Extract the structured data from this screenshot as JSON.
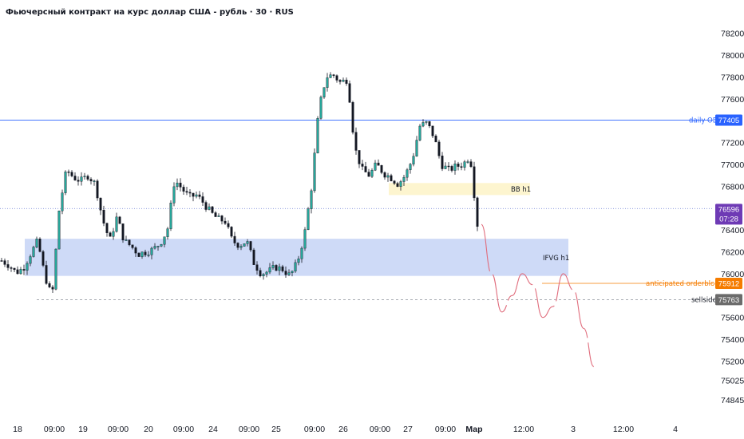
{
  "header": {
    "title": "Фьючерсный контракт на курс доллар США - рубль · 30 · RUS"
  },
  "colors": {
    "bull": "#26a69a",
    "bear": "#131722",
    "blue_line": "#2962ff",
    "orange": "#f57c00",
    "current_badge": "#6e3ab5",
    "sellside_badge": "#6b6b6b",
    "ifvg_zone": "#c5d3f6",
    "bb_zone": "#fdf3c7",
    "projection": "#e06c7c"
  },
  "chart_data": {
    "type": "candlestick",
    "title": "Фьючерсный контракт на курс доллар США - рубль · 30 · RUS",
    "ylim": [
      74780,
      78300
    ],
    "y_ticks": [
      78200,
      78000,
      77800,
      77600,
      77200,
      77000,
      76800,
      76400,
      76200,
      76000,
      75600,
      75400,
      75200,
      75025,
      74845
    ],
    "x_ticks": [
      {
        "label": "18",
        "bold": false
      },
      {
        "label": "09:00",
        "bold": false
      },
      {
        "label": "19",
        "bold": false
      },
      {
        "label": "09:00",
        "bold": false
      },
      {
        "label": "20",
        "bold": false
      },
      {
        "label": "09:00",
        "bold": false
      },
      {
        "label": "24",
        "bold": false
      },
      {
        "label": "09:00",
        "bold": false
      },
      {
        "label": "25",
        "bold": false
      },
      {
        "label": "09:00",
        "bold": false
      },
      {
        "label": "26",
        "bold": false
      },
      {
        "label": "09:00",
        "bold": false
      },
      {
        "label": "27",
        "bold": false
      },
      {
        "label": "09:00",
        "bold": false
      },
      {
        "label": "Мар",
        "bold": true
      },
      {
        "label": "12:00",
        "bold": false
      },
      {
        "label": "3",
        "bold": false
      },
      {
        "label": "12:00",
        "bold": false
      },
      {
        "label": "4",
        "bold": false
      }
    ],
    "price_path": [
      76120,
      76080,
      76010,
      76050,
      76180,
      76300,
      75980,
      75780,
      76600,
      76950,
      76880,
      76850,
      76900,
      76820,
      76500,
      76300,
      76520,
      76300,
      76250,
      76180,
      76200,
      76220,
      76280,
      76400,
      76860,
      76780,
      76700,
      76720,
      76650,
      76560,
      76500,
      76480,
      76300,
      76260,
      76300,
      76100,
      76000,
      76020,
      76060,
      76040,
      75980,
      76100,
      76350,
      76800,
      77500,
      77800,
      77820,
      77750,
      77780,
      77150,
      76950,
      76900,
      77000,
      76920,
      76880,
      76820,
      76900,
      77050,
      77350,
      77380,
      77250,
      77000,
      76950,
      76980,
      77000,
      77080,
      76450
    ],
    "projection": [
      76450,
      76000,
      75650,
      75800,
      76000,
      75900,
      75600,
      75700,
      76000,
      75850,
      75500,
      75150
    ],
    "zones": [
      {
        "label": "IFVG h1",
        "y_top": 76320,
        "y_bottom": 75980
      },
      {
        "label": "BB h1",
        "y_top": 76830,
        "y_bottom": 76720
      }
    ],
    "levels": [
      {
        "label": "daily OB",
        "value": 77405,
        "badge": "77405",
        "style": "solid"
      },
      {
        "label": "anticipated orderblock",
        "value": 75912,
        "badge": "75912",
        "style": "solid"
      },
      {
        "label": "sellside",
        "value": 75763,
        "badge": "75763",
        "style": "dashed"
      },
      {
        "label": "",
        "value": 76596,
        "badge": "76596",
        "style": "dotted"
      }
    ],
    "current_price": {
      "value": 76596,
      "label": "76596",
      "countdown": "07:28"
    }
  }
}
